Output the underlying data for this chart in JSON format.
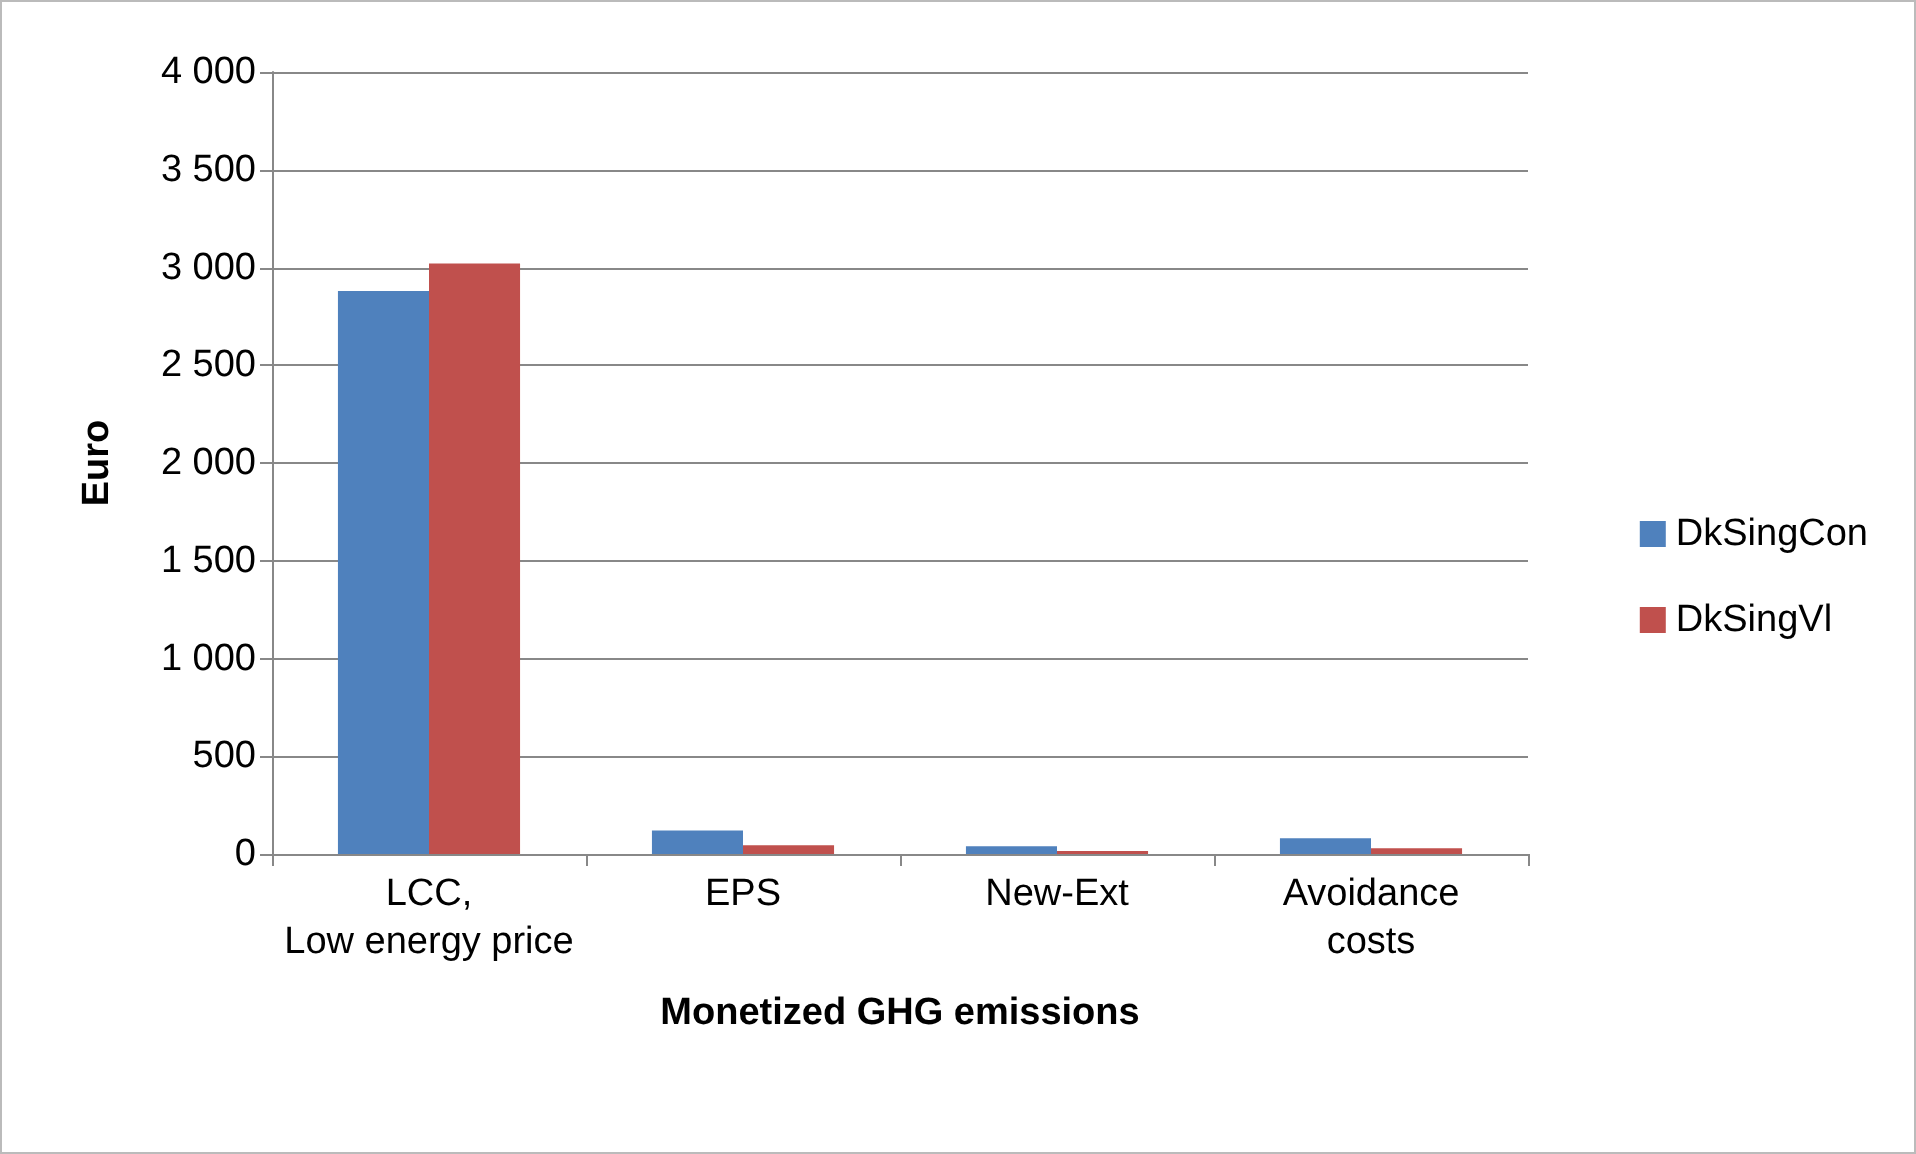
{
  "chart_data": {
    "type": "bar",
    "xlabel": "Monetized GHG emissions",
    "ylabel": "Euro",
    "categories": [
      "LCC, Low energy price",
      "EPS",
      "New-Ext",
      "Avoidance costs"
    ],
    "series": [
      {
        "name": "DkSingCon",
        "color": "#4f81bd",
        "values": [
          2880,
          120,
          40,
          80
        ]
      },
      {
        "name": "DkSingVl",
        "color": "#c0504d",
        "values": [
          3020,
          45,
          15,
          30
        ]
      }
    ],
    "ylim": [
      0,
      4000
    ],
    "yticks": [
      0,
      500,
      {
        "value": 1000,
        "label": "1 000"
      },
      {
        "value": 1500,
        "label": "1 500"
      },
      {
        "value": 2000,
        "label": "2 000"
      },
      {
        "value": 2500,
        "label": "2 500"
      },
      {
        "value": 3000,
        "label": "3 000"
      },
      {
        "value": 3500,
        "label": "3 500"
      },
      {
        "value": 4000,
        "label": "4 000"
      }
    ],
    "grid": "y",
    "legend": "right"
  }
}
